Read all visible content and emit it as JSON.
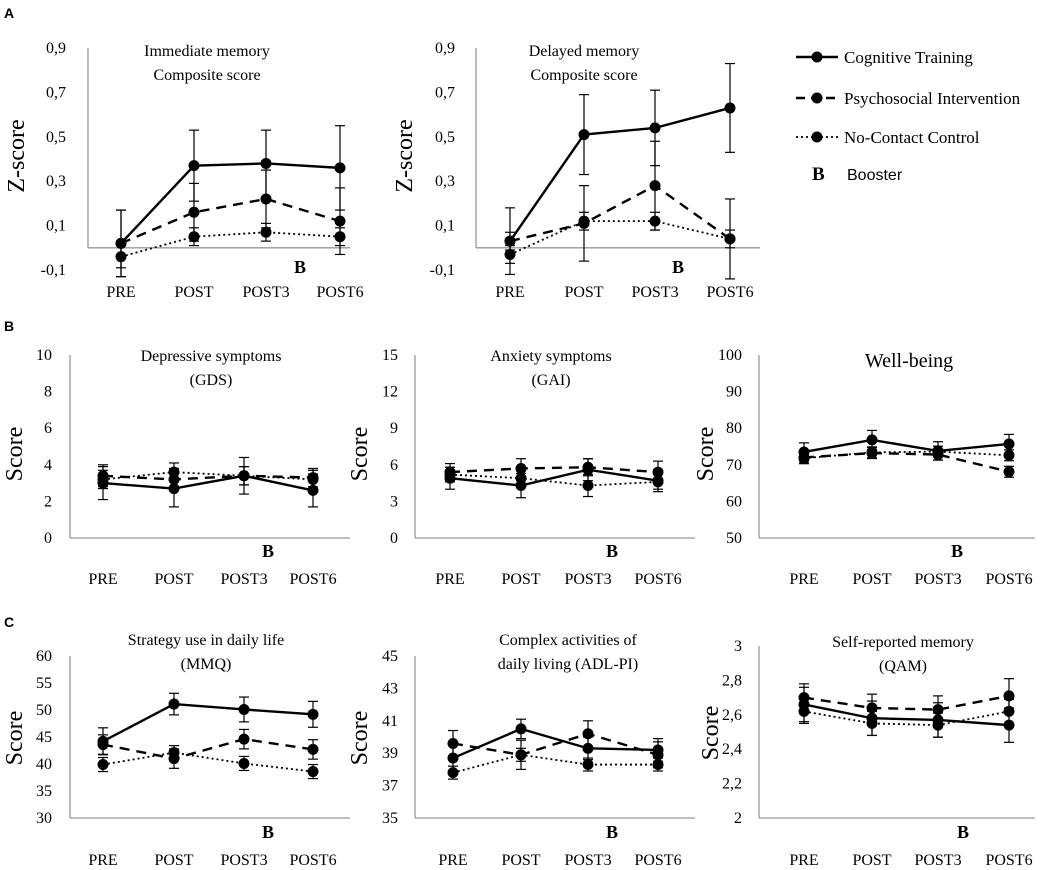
{
  "panels": [
    {
      "letter": "A"
    },
    {
      "letter": "B"
    },
    {
      "letter": "C"
    }
  ],
  "legend": {
    "items": [
      {
        "label": "Cognitive Training",
        "style": "solid"
      },
      {
        "label": "Psychosocial Intervention",
        "style": "dashed"
      },
      {
        "label": "No-Contact Control",
        "style": "dotted"
      }
    ],
    "booster_symbol": "B",
    "booster_label": "Booster"
  },
  "chart_data": [
    {
      "type": "line",
      "panel": "A",
      "title": [
        "Immediate memory",
        "Composite score"
      ],
      "ylabel": "Z-score",
      "categories": [
        "PRE",
        "POST",
        "POST3",
        "POST6"
      ],
      "ylim": [
        -0.1,
        0.9
      ],
      "yticks": [
        "-0,1",
        "0,1",
        "0,3",
        "0,5",
        "0,7",
        "0,9"
      ],
      "booster_marker": "B",
      "booster_after": "POST3",
      "series": [
        {
          "name": "Cognitive Training",
          "style": "solid",
          "values": [
            0.02,
            0.37,
            0.38,
            0.36
          ],
          "error": [
            0.15,
            0.16,
            0.15,
            0.19
          ]
        },
        {
          "name": "Psychosocial Intervention",
          "style": "dashed",
          "values": [
            0.02,
            0.16,
            0.22,
            0.12
          ],
          "error": [
            0.15,
            0.13,
            0.13,
            0.15
          ]
        },
        {
          "name": "No-Contact Control",
          "style": "dotted",
          "values": [
            -0.04,
            0.05,
            0.07,
            0.05
          ],
          "error": [
            0.05,
            0.04,
            0.04,
            0.04
          ]
        }
      ]
    },
    {
      "type": "line",
      "panel": "A",
      "title": [
        "Delayed memory",
        "Composite score"
      ],
      "ylabel": "Z-score",
      "categories": [
        "PRE",
        "POST",
        "POST3",
        "POST6"
      ],
      "ylim": [
        -0.1,
        0.9
      ],
      "yticks": [
        "-0,1",
        "0,1",
        "0,3",
        "0,5",
        "0,7",
        "0,9"
      ],
      "booster_marker": "B",
      "booster_after": "POST3",
      "series": [
        {
          "name": "Cognitive Training",
          "style": "solid",
          "values": [
            0.03,
            0.51,
            0.54,
            0.63
          ],
          "error": [
            0.15,
            0.18,
            0.17,
            0.2
          ]
        },
        {
          "name": "Psychosocial Intervention",
          "style": "dashed",
          "values": [
            0.03,
            0.11,
            0.28,
            0.04
          ],
          "error": [
            0.04,
            0.17,
            0.2,
            0.18
          ]
        },
        {
          "name": "No-Contact Control",
          "style": "dotted",
          "values": [
            -0.03,
            0.12,
            0.12,
            0.04
          ],
          "error": [
            0.04,
            0.04,
            0.04,
            0.04
          ]
        }
      ]
    },
    {
      "type": "line",
      "panel": "B",
      "title": [
        "Depressive symptoms",
        "(GDS)"
      ],
      "ylabel": "Score",
      "categories": [
        "PRE",
        "POST",
        "POST3",
        "POST6"
      ],
      "ylim": [
        0,
        10
      ],
      "yticks": [
        "0",
        "2",
        "4",
        "6",
        "8",
        "10"
      ],
      "booster_marker": "B",
      "booster_after": "POST3",
      "series": [
        {
          "name": "Cognitive Training",
          "style": "solid",
          "values": [
            3.0,
            2.7,
            3.4,
            2.6
          ],
          "error": [
            0.9,
            1.0,
            1.0,
            0.9
          ]
        },
        {
          "name": "Psychosocial Intervention",
          "style": "dashed",
          "values": [
            3.4,
            3.2,
            3.4,
            3.3
          ],
          "error": [
            0.6,
            0.6,
            0.5,
            0.5
          ]
        },
        {
          "name": "No-Contact Control",
          "style": "dotted",
          "values": [
            3.2,
            3.6,
            3.4,
            3.2
          ],
          "error": [
            0.5,
            0.5,
            0.5,
            0.5
          ]
        }
      ]
    },
    {
      "type": "line",
      "panel": "B",
      "title": [
        "Anxiety symptoms",
        "(GAI)"
      ],
      "ylabel": "Score",
      "categories": [
        "PRE",
        "POST",
        "POST3",
        "POST6"
      ],
      "ylim": [
        0,
        15
      ],
      "yticks": [
        "0",
        "3",
        "6",
        "9",
        "12",
        "15"
      ],
      "booster_marker": "B",
      "booster_after": "POST3",
      "series": [
        {
          "name": "Cognitive Training",
          "style": "solid",
          "values": [
            4.9,
            4.3,
            5.6,
            4.7
          ],
          "error": [
            0.9,
            1.0,
            0.9,
            0.9
          ]
        },
        {
          "name": "Psychosocial Intervention",
          "style": "dashed",
          "values": [
            5.4,
            5.7,
            5.8,
            5.4
          ],
          "error": [
            0.7,
            0.8,
            0.7,
            0.9
          ]
        },
        {
          "name": "No-Contact Control",
          "style": "dotted",
          "values": [
            5.2,
            4.9,
            4.3,
            4.6
          ],
          "error": [
            0.6,
            0.6,
            0.9,
            0.6
          ]
        }
      ]
    },
    {
      "type": "line",
      "panel": "B",
      "title": [
        "Well-being"
      ],
      "ylabel": "Score",
      "categories": [
        "PRE",
        "POST",
        "POST3",
        "POST6"
      ],
      "ylim": [
        50,
        100
      ],
      "yticks": [
        "50",
        "60",
        "70",
        "80",
        "90",
        "100"
      ],
      "booster_marker": "B",
      "booster_after": "POST3",
      "series": [
        {
          "name": "Cognitive Training",
          "style": "solid",
          "values": [
            73.5,
            76.8,
            73.8,
            75.7
          ],
          "error": [
            2.5,
            2.6,
            2.5,
            2.6
          ]
        },
        {
          "name": "Psychosocial Intervention",
          "style": "dashed",
          "values": [
            72.0,
            73.2,
            72.8,
            68.1
          ],
          "error": [
            1.5,
            1.5,
            1.5,
            1.5
          ]
        },
        {
          "name": "No-Contact Control",
          "style": "dotted",
          "values": [
            71.8,
            73.4,
            73.6,
            72.6
          ],
          "error": [
            1.5,
            1.5,
            1.5,
            1.5
          ]
        }
      ]
    },
    {
      "type": "line",
      "panel": "C",
      "title": [
        "Strategy use in daily life",
        "(MMQ)"
      ],
      "ylabel": "Score",
      "categories": [
        "PRE",
        "POST",
        "POST3",
        "POST6"
      ],
      "ylim": [
        30,
        60
      ],
      "yticks": [
        "30",
        "35",
        "40",
        "45",
        "50",
        "55",
        "60"
      ],
      "booster_marker": "B",
      "booster_after": "POST3",
      "series": [
        {
          "name": "Cognitive Training",
          "style": "solid",
          "values": [
            44.2,
            51.1,
            50.1,
            49.2
          ],
          "error": [
            2.5,
            2.0,
            2.3,
            2.4
          ]
        },
        {
          "name": "Psychosocial Intervention",
          "style": "dashed",
          "values": [
            43.6,
            41.0,
            44.6,
            42.7
          ],
          "error": [
            1.8,
            1.8,
            1.8,
            1.8
          ]
        },
        {
          "name": "No-Contact Control",
          "style": "dotted",
          "values": [
            39.9,
            42.1,
            40.1,
            38.6
          ],
          "error": [
            1.3,
            1.3,
            1.3,
            1.3
          ]
        }
      ]
    },
    {
      "type": "line",
      "panel": "C",
      "title": [
        "Complex activities of",
        "daily living (ADL-PI)"
      ],
      "ylabel": "Score",
      "categories": [
        "PRE",
        "POST",
        "POST3",
        "POST6"
      ],
      "ylim": [
        35,
        45
      ],
      "yticks": [
        "35",
        "37",
        "39",
        "41",
        "43",
        "45"
      ],
      "booster_marker": "B",
      "booster_after": "POST3",
      "series": [
        {
          "name": "Cognitive Training",
          "style": "solid",
          "values": [
            38.7,
            40.5,
            39.3,
            39.2
          ],
          "error": [
            0.9,
            0.6,
            0.7,
            0.7
          ]
        },
        {
          "name": "Psychosocial Intervention",
          "style": "dashed",
          "values": [
            39.6,
            38.9,
            40.2,
            38.9
          ],
          "error": [
            0.8,
            0.9,
            0.8,
            0.8
          ]
        },
        {
          "name": "No-Contact Control",
          "style": "dotted",
          "values": [
            37.8,
            38.9,
            38.3,
            38.3
          ],
          "error": [
            0.4,
            0.4,
            0.4,
            0.4
          ]
        }
      ]
    },
    {
      "type": "line",
      "panel": "C",
      "title": [
        "Self-reported memory",
        "(QAM)"
      ],
      "ylabel": "Score",
      "categories": [
        "PRE",
        "POST",
        "POST3",
        "POST6"
      ],
      "ylim": [
        2,
        3
      ],
      "yticks": [
        "2",
        "2,2",
        "2,4",
        "2,6",
        "2,8",
        "3"
      ],
      "booster_marker": "B",
      "booster_after": "POST3",
      "series": [
        {
          "name": "Cognitive Training",
          "style": "solid",
          "values": [
            2.66,
            2.58,
            2.57,
            2.54
          ],
          "error": [
            0.1,
            0.1,
            0.1,
            0.1
          ]
        },
        {
          "name": "Psychosocial Intervention",
          "style": "dashed",
          "values": [
            2.7,
            2.64,
            2.63,
            2.71
          ],
          "error": [
            0.08,
            0.08,
            0.08,
            0.1
          ]
        },
        {
          "name": "No-Contact Control",
          "style": "dotted",
          "values": [
            2.62,
            2.55,
            2.54,
            2.62
          ],
          "error": [
            0.07,
            0.07,
            0.07,
            0.07
          ]
        }
      ]
    }
  ]
}
